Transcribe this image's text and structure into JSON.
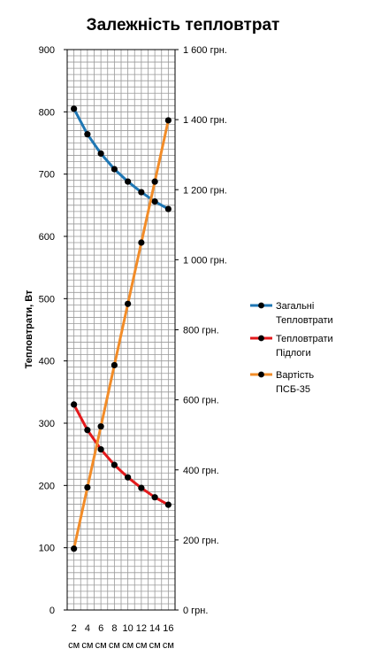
{
  "chart_data": {
    "type": "line",
    "title": "Залежність тепловтрат",
    "ylabel": "Тепловтрати, Вт",
    "y2label": "",
    "categories": [
      "2 см",
      "4 см",
      "6 см",
      "8 см",
      "10 см",
      "12 см",
      "14 см",
      "16 см"
    ],
    "ylim": [
      0,
      900
    ],
    "y_ticks": [
      0,
      100,
      200,
      300,
      400,
      500,
      600,
      700,
      800,
      900
    ],
    "y2lim": [
      0,
      1600
    ],
    "y2_ticks": [
      0,
      200,
      400,
      600,
      800,
      1000,
      1200,
      1400,
      1600
    ],
    "y2_tick_labels": [
      "0 грн.",
      "200 грн.",
      "400 грн.",
      "600 грн.",
      "800 грн.",
      "1 000 грн.",
      "1 200 грн.",
      "1 400 грн.",
      "1 600 грн."
    ],
    "grid": true,
    "legend_position": "right",
    "series": [
      {
        "name": "Загальні Тепловтрати",
        "axis": "left",
        "color": "#1f77b4",
        "values": [
          805,
          764,
          733,
          708,
          688,
          671,
          656,
          644
        ]
      },
      {
        "name": "Тепловтрати Підлоги",
        "axis": "left",
        "color": "#e31a1c",
        "values": [
          330,
          289,
          258,
          233,
          213,
          196,
          181,
          169
        ]
      },
      {
        "name": "Вартість ПСБ-35",
        "axis": "right",
        "color": "#f28c28",
        "values": [
          175,
          350,
          524,
          699,
          874,
          1049,
          1223,
          1398
        ]
      }
    ]
  }
}
